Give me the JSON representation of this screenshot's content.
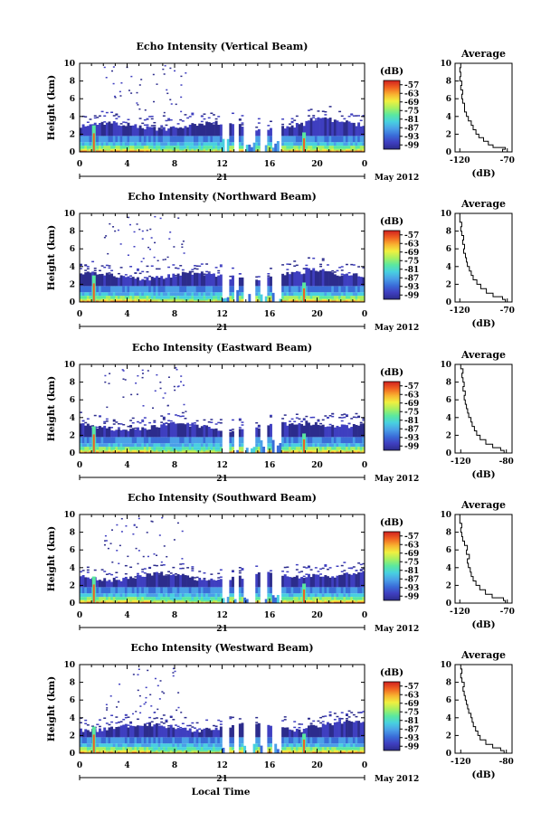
{
  "chart_data": {
    "type": "heatmap",
    "layout": "five panels of time-height echo intensity with colour scale and average profile",
    "panels": [
      {
        "title": "Echo Intensity (Vertical Beam)",
        "ylabel": "Height (km)",
        "avg_title": "Average",
        "avg_xlabel": "(dB)",
        "avg_xticks": [
          "-120",
          "-70"
        ],
        "avg_xlim": [
          -125,
          -65
        ],
        "profile": [
          [
            0,
            -75
          ],
          [
            0.3,
            -72
          ],
          [
            0.5,
            -85
          ],
          [
            0.8,
            -90
          ],
          [
            1.2,
            -95
          ],
          [
            1.6,
            -100
          ],
          [
            2.0,
            -103
          ],
          [
            2.5,
            -106
          ],
          [
            3.0,
            -108
          ],
          [
            3.5,
            -111
          ],
          [
            4.0,
            -113
          ],
          [
            4.5,
            -115
          ],
          [
            5.0,
            -115
          ],
          [
            5.5,
            -117
          ],
          [
            6.0,
            -118
          ],
          [
            6.5,
            -117
          ],
          [
            7.0,
            -119
          ],
          [
            7.5,
            -118
          ],
          [
            8.0,
            -120
          ],
          [
            8.5,
            -119
          ],
          [
            9.0,
            -120
          ],
          [
            9.5,
            -119
          ],
          [
            10,
            -120
          ]
        ]
      },
      {
        "title": "Echo Intensity (Northward Beam)",
        "ylabel": "Height (km)",
        "avg_title": "Average",
        "avg_xlabel": "(dB)",
        "avg_xticks": [
          "-120",
          "-70"
        ],
        "avg_xlim": [
          -125,
          -65
        ],
        "profile": [
          [
            0,
            -72
          ],
          [
            0.3,
            -75
          ],
          [
            0.6,
            -85
          ],
          [
            1.0,
            -92
          ],
          [
            1.5,
            -98
          ],
          [
            2.0,
            -102
          ],
          [
            2.5,
            -106
          ],
          [
            3.0,
            -108
          ],
          [
            3.5,
            -110
          ],
          [
            4.0,
            -112
          ],
          [
            4.5,
            -113
          ],
          [
            5.0,
            -114
          ],
          [
            5.5,
            -116
          ],
          [
            6.0,
            -115
          ],
          [
            6.5,
            -117
          ],
          [
            7.0,
            -116
          ],
          [
            7.5,
            -118
          ],
          [
            8.0,
            -119
          ],
          [
            8.5,
            -118
          ],
          [
            9.0,
            -120
          ],
          [
            10,
            -120
          ]
        ]
      },
      {
        "title": "Echo Intensity (Eastward Beam)",
        "ylabel": "Height (km)",
        "avg_title": "Average",
        "avg_xlabel": "(dB)",
        "avg_xticks": [
          "-120",
          "-80"
        ],
        "avg_xlim": [
          -125,
          -75
        ],
        "profile": [
          [
            0,
            -82
          ],
          [
            0.3,
            -85
          ],
          [
            0.6,
            -92
          ],
          [
            1.0,
            -98
          ],
          [
            1.5,
            -103
          ],
          [
            2.0,
            -106
          ],
          [
            2.5,
            -108
          ],
          [
            3.0,
            -110
          ],
          [
            3.5,
            -111
          ],
          [
            4.0,
            -113
          ],
          [
            4.5,
            -114
          ],
          [
            5.0,
            -115
          ],
          [
            5.5,
            -116
          ],
          [
            6.0,
            -117
          ],
          [
            6.5,
            -116
          ],
          [
            7.0,
            -118
          ],
          [
            7.5,
            -117
          ],
          [
            8.0,
            -118
          ],
          [
            8.5,
            -119
          ],
          [
            9.0,
            -118
          ],
          [
            9.5,
            -120
          ],
          [
            10,
            -119
          ]
        ]
      },
      {
        "title": "Echo Intensity (Southward Beam)",
        "ylabel": "Height (km)",
        "avg_title": "Average",
        "avg_xlabel": "(dB)",
        "avg_xticks": [
          "-120",
          "-70"
        ],
        "avg_xlim": [
          -125,
          -65
        ],
        "profile": [
          [
            0,
            -72
          ],
          [
            0.3,
            -74
          ],
          [
            0.6,
            -86
          ],
          [
            1.0,
            -93
          ],
          [
            1.5,
            -99
          ],
          [
            2.0,
            -103
          ],
          [
            2.5,
            -106
          ],
          [
            3.0,
            -108
          ],
          [
            3.5,
            -109
          ],
          [
            4.0,
            -111
          ],
          [
            4.5,
            -112
          ],
          [
            5.0,
            -110
          ],
          [
            5.5,
            -113
          ],
          [
            6.0,
            -112
          ],
          [
            6.5,
            -115
          ],
          [
            7.0,
            -117
          ],
          [
            7.5,
            -118
          ],
          [
            8.0,
            -119
          ],
          [
            8.5,
            -118
          ],
          [
            9.0,
            -120
          ],
          [
            10,
            -120
          ]
        ]
      },
      {
        "title": "Echo Intensity (Westward Beam)",
        "ylabel": "Height (km)",
        "avg_title": "Average",
        "avg_xlabel": "(dB)",
        "avg_xticks": [
          "-120",
          "-80"
        ],
        "avg_xlim": [
          -125,
          -75
        ],
        "profile": [
          [
            0,
            -82
          ],
          [
            0.3,
            -85
          ],
          [
            0.6,
            -92
          ],
          [
            1.0,
            -98
          ],
          [
            1.5,
            -103
          ],
          [
            2.0,
            -105
          ],
          [
            2.5,
            -107
          ],
          [
            3.0,
            -109
          ],
          [
            3.5,
            -110
          ],
          [
            4.0,
            -111
          ],
          [
            4.5,
            -113
          ],
          [
            5.0,
            -114
          ],
          [
            5.5,
            -115
          ],
          [
            6.0,
            -116
          ],
          [
            6.5,
            -117
          ],
          [
            7.0,
            -118
          ],
          [
            7.5,
            -117
          ],
          [
            8.0,
            -119
          ],
          [
            8.5,
            -120
          ],
          [
            9.0,
            -119
          ],
          [
            9.5,
            -120
          ],
          [
            10,
            -121
          ]
        ]
      }
    ],
    "xaxis": {
      "ticks": [
        "0",
        "4",
        "8",
        "12",
        "16",
        "20",
        "0"
      ],
      "hours": [
        0,
        4,
        8,
        12,
        16,
        20,
        24
      ],
      "xlim": [
        0,
        24
      ],
      "date_label": "21",
      "date_suffix": "May 2012"
    },
    "yaxis": {
      "ticks": [
        "0",
        "2",
        "4",
        "6",
        "8",
        "10"
      ],
      "ylim": [
        0,
        10
      ]
    },
    "colorbar": {
      "label": "(dB)",
      "ticks": [
        "-57",
        "-63",
        "-69",
        "-75",
        "-81",
        "-87",
        "-93",
        "-99"
      ],
      "range": [
        -102,
        -54
      ]
    },
    "xlabel": "Local Time",
    "colors": {
      "scale": [
        "#2c2c8c",
        "#3f3fc0",
        "#3a6cd8",
        "#4aa0e8",
        "#48d0e0",
        "#5ae8a0",
        "#a8f060",
        "#f0f040",
        "#f8b030",
        "#f06020",
        "#d02020"
      ]
    }
  }
}
